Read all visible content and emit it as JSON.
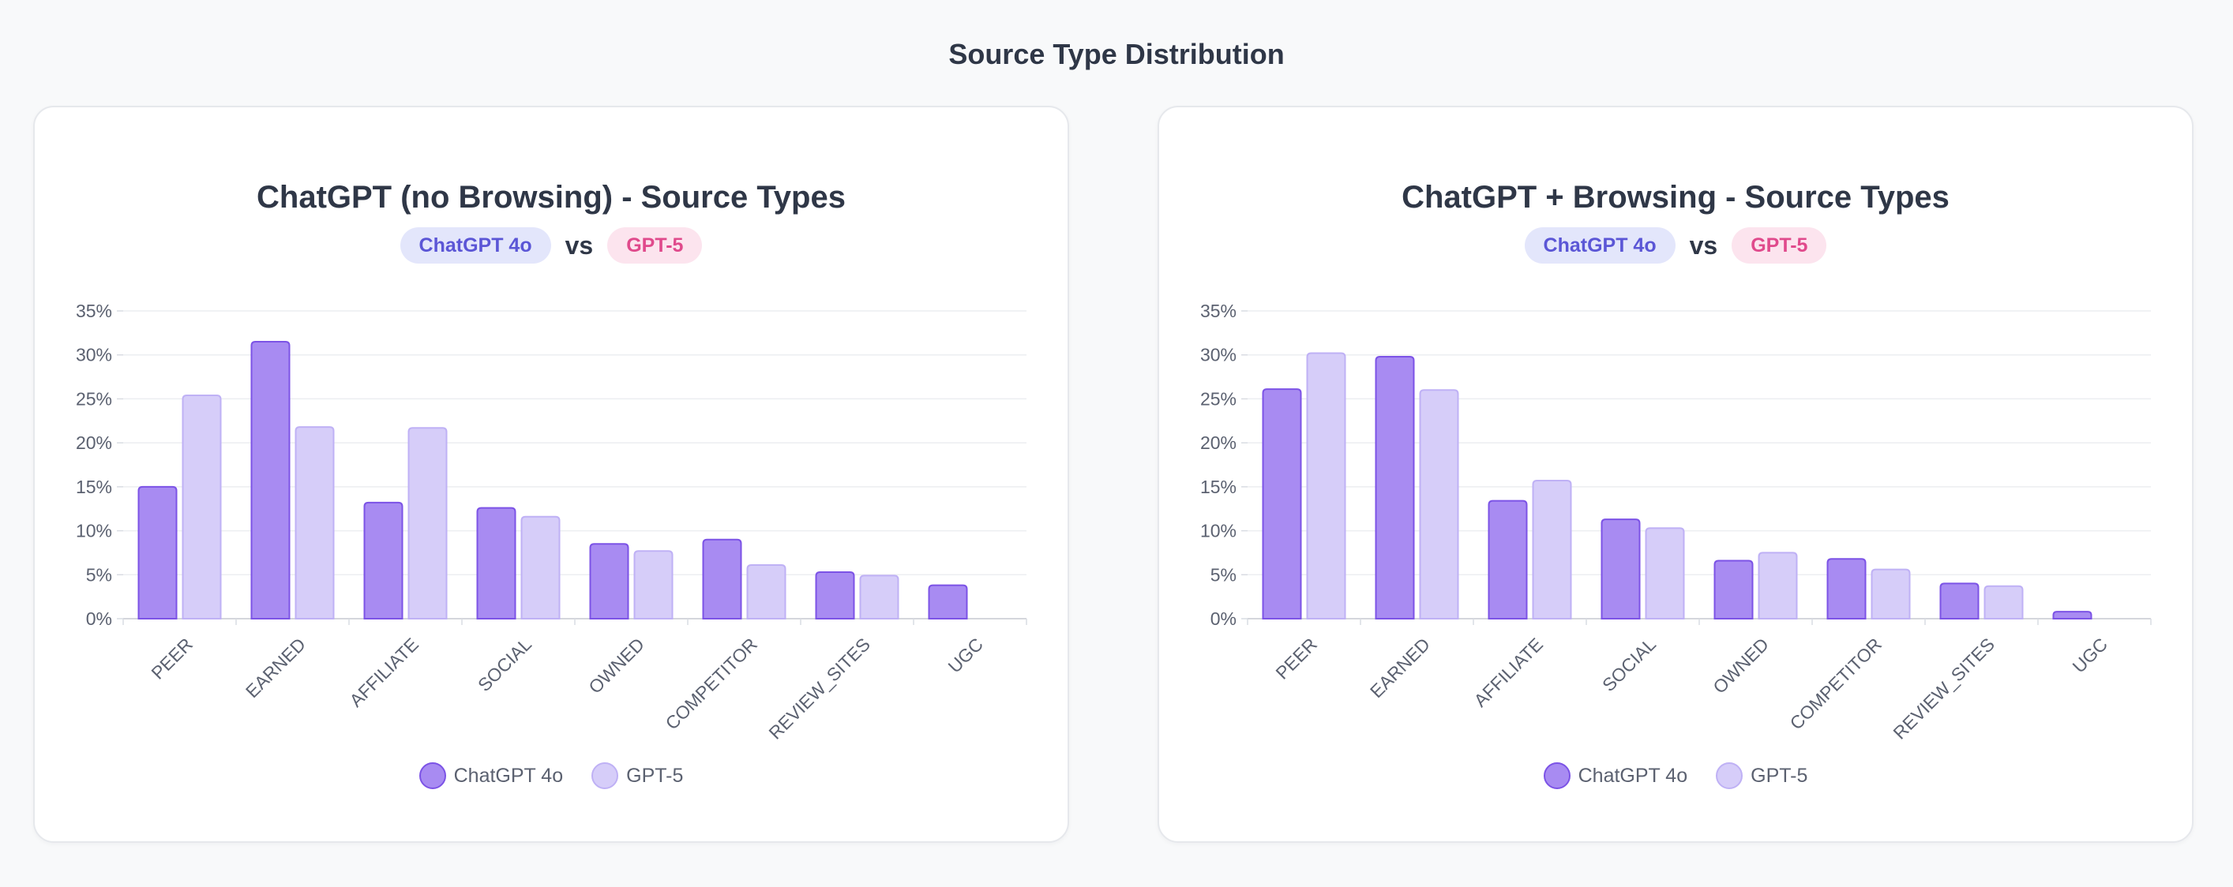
{
  "page": {
    "title": "Source Type Distribution"
  },
  "legend": {
    "a": "ChatGPT 4o",
    "b": "GPT-5",
    "vs": "vs"
  },
  "colors": {
    "series_a_fill": "#a88bf2",
    "series_a_stroke": "#7c53e6",
    "series_b_fill": "#d6cdf9",
    "series_b_stroke": "#bfb1f5",
    "badge_a_text": "#5b56d6",
    "badge_b_text": "#e04a8c"
  },
  "chart_data": [
    {
      "type": "bar",
      "title": "ChatGPT (no Browsing) - Source Types",
      "categories": [
        "PEER",
        "EARNED",
        "AFFILIATE",
        "SOCIAL",
        "OWNED",
        "COMPETITOR",
        "REVIEW_SITES",
        "UGC"
      ],
      "series": [
        {
          "name": "ChatGPT 4o",
          "values": [
            15.0,
            31.5,
            13.2,
            12.6,
            8.5,
            9.0,
            5.3,
            3.8
          ]
        },
        {
          "name": "GPT-5",
          "values": [
            25.4,
            21.8,
            21.7,
            11.6,
            7.7,
            6.1,
            4.9,
            0
          ]
        }
      ],
      "ylim": [
        0,
        35
      ],
      "yticks": [
        "0%",
        "5%",
        "10%",
        "15%",
        "20%",
        "25%",
        "30%",
        "35%"
      ],
      "xlabel": "",
      "ylabel": "",
      "grid": true,
      "legend_position": "bottom"
    },
    {
      "type": "bar",
      "title": "ChatGPT + Browsing - Source Types",
      "categories": [
        "PEER",
        "EARNED",
        "AFFILIATE",
        "SOCIAL",
        "OWNED",
        "COMPETITOR",
        "REVIEW_SITES",
        "UGC"
      ],
      "series": [
        {
          "name": "ChatGPT 4o",
          "values": [
            26.1,
            29.8,
            13.4,
            11.3,
            6.6,
            6.8,
            4.0,
            0.8
          ]
        },
        {
          "name": "GPT-5",
          "values": [
            30.2,
            26.0,
            15.7,
            10.3,
            7.5,
            5.6,
            3.7,
            0
          ]
        }
      ],
      "ylim": [
        0,
        35
      ],
      "yticks": [
        "0%",
        "5%",
        "10%",
        "15%",
        "20%",
        "25%",
        "30%",
        "35%"
      ],
      "xlabel": "",
      "ylabel": "",
      "grid": true,
      "legend_position": "bottom"
    }
  ]
}
